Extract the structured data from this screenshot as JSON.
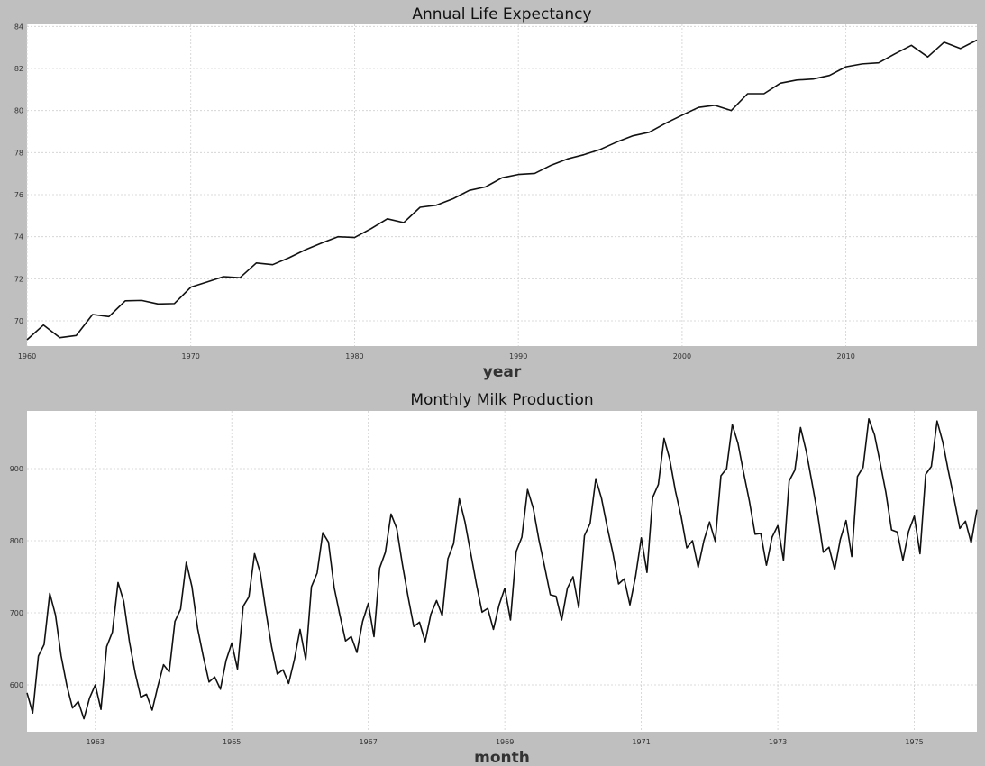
{
  "chart_data": [
    {
      "type": "line",
      "title": "Annual Life Expectancy",
      "xlabel": "year",
      "ylabel": "",
      "xlim": [
        1960,
        2018
      ],
      "ylim": [
        68.8,
        84.1
      ],
      "grid": true,
      "x_ticks": [
        "1960",
        "1970",
        "1980",
        "1990",
        "2000",
        "2010"
      ],
      "y_ticks": [
        "70",
        "72",
        "74",
        "76",
        "78",
        "80",
        "82",
        "84"
      ],
      "x": [
        1960,
        1961,
        1962,
        1963,
        1964,
        1965,
        1966,
        1967,
        1968,
        1969,
        1970,
        1971,
        1972,
        1973,
        1974,
        1975,
        1976,
        1977,
        1978,
        1979,
        1980,
        1981,
        1982,
        1983,
        1984,
        1985,
        1986,
        1987,
        1988,
        1989,
        1990,
        1991,
        1992,
        1993,
        1994,
        1995,
        1996,
        1997,
        1998,
        1999,
        2000,
        2001,
        2002,
        2003,
        2004,
        2005,
        2006,
        2007,
        2008,
        2009,
        2010,
        2011,
        2012,
        2013,
        2014,
        2015,
        2016,
        2017,
        2018
      ],
      "values": [
        69.1,
        69.8,
        69.2,
        69.3,
        70.3,
        70.2,
        70.95,
        70.97,
        70.8,
        70.82,
        71.6,
        71.85,
        72.1,
        72.05,
        72.75,
        72.67,
        73.0,
        73.38,
        73.7,
        74.0,
        73.96,
        74.38,
        74.85,
        74.67,
        75.4,
        75.5,
        75.8,
        76.2,
        76.37,
        76.8,
        76.96,
        77.01,
        77.4,
        77.7,
        77.9,
        78.15,
        78.5,
        78.8,
        78.97,
        79.4,
        79.78,
        80.15,
        80.25,
        80.0,
        80.8,
        80.8,
        81.3,
        81.45,
        81.5,
        81.67,
        82.08,
        82.22,
        82.27,
        82.7,
        83.1,
        82.55,
        83.25,
        82.95,
        83.35
      ]
    },
    {
      "type": "line",
      "title": "Monthly Milk Production",
      "xlabel": "month",
      "ylabel": "",
      "xlim": [
        1962.0,
        1975.917
      ],
      "ylim": [
        535,
        980
      ],
      "grid": true,
      "x_ticks": [
        "1963",
        "1965",
        "1967",
        "1969",
        "1971",
        "1973",
        "1975"
      ],
      "y_ticks": [
        "600",
        "700",
        "800",
        "900"
      ],
      "start": "1962-01",
      "frequency": "monthly",
      "values": [
        589,
        561,
        640,
        656,
        727,
        697,
        640,
        599,
        568,
        577,
        553,
        582,
        600,
        566,
        653,
        673,
        742,
        716,
        660,
        617,
        583,
        587,
        565,
        598,
        628,
        618,
        688,
        705,
        770,
        736,
        678,
        639,
        604,
        611,
        594,
        634,
        658,
        622,
        709,
        722,
        782,
        756,
        702,
        653,
        615,
        621,
        602,
        635,
        677,
        635,
        736,
        755,
        811,
        798,
        735,
        697,
        661,
        667,
        645,
        688,
        713,
        667,
        762,
        784,
        837,
        817,
        767,
        722,
        681,
        687,
        660,
        698,
        717,
        696,
        775,
        796,
        858,
        826,
        783,
        740,
        701,
        706,
        677,
        711,
        734,
        690,
        785,
        805,
        871,
        845,
        801,
        764,
        725,
        723,
        690,
        734,
        750,
        707,
        807,
        824,
        886,
        859,
        819,
        783,
        740,
        747,
        711,
        751,
        804,
        756,
        860,
        878,
        942,
        913,
        869,
        834,
        790,
        800,
        763,
        800,
        826,
        799,
        890,
        900,
        961,
        935,
        894,
        855,
        809,
        810,
        766,
        805,
        821,
        773,
        883,
        898,
        957,
        924,
        881,
        837,
        784,
        791,
        760,
        802,
        828,
        778,
        889,
        902,
        969,
        947,
        908,
        867,
        815,
        812,
        773,
        813,
        834,
        782,
        892,
        903,
        966,
        937,
        896,
        858,
        817,
        827,
        797,
        843
      ]
    }
  ]
}
